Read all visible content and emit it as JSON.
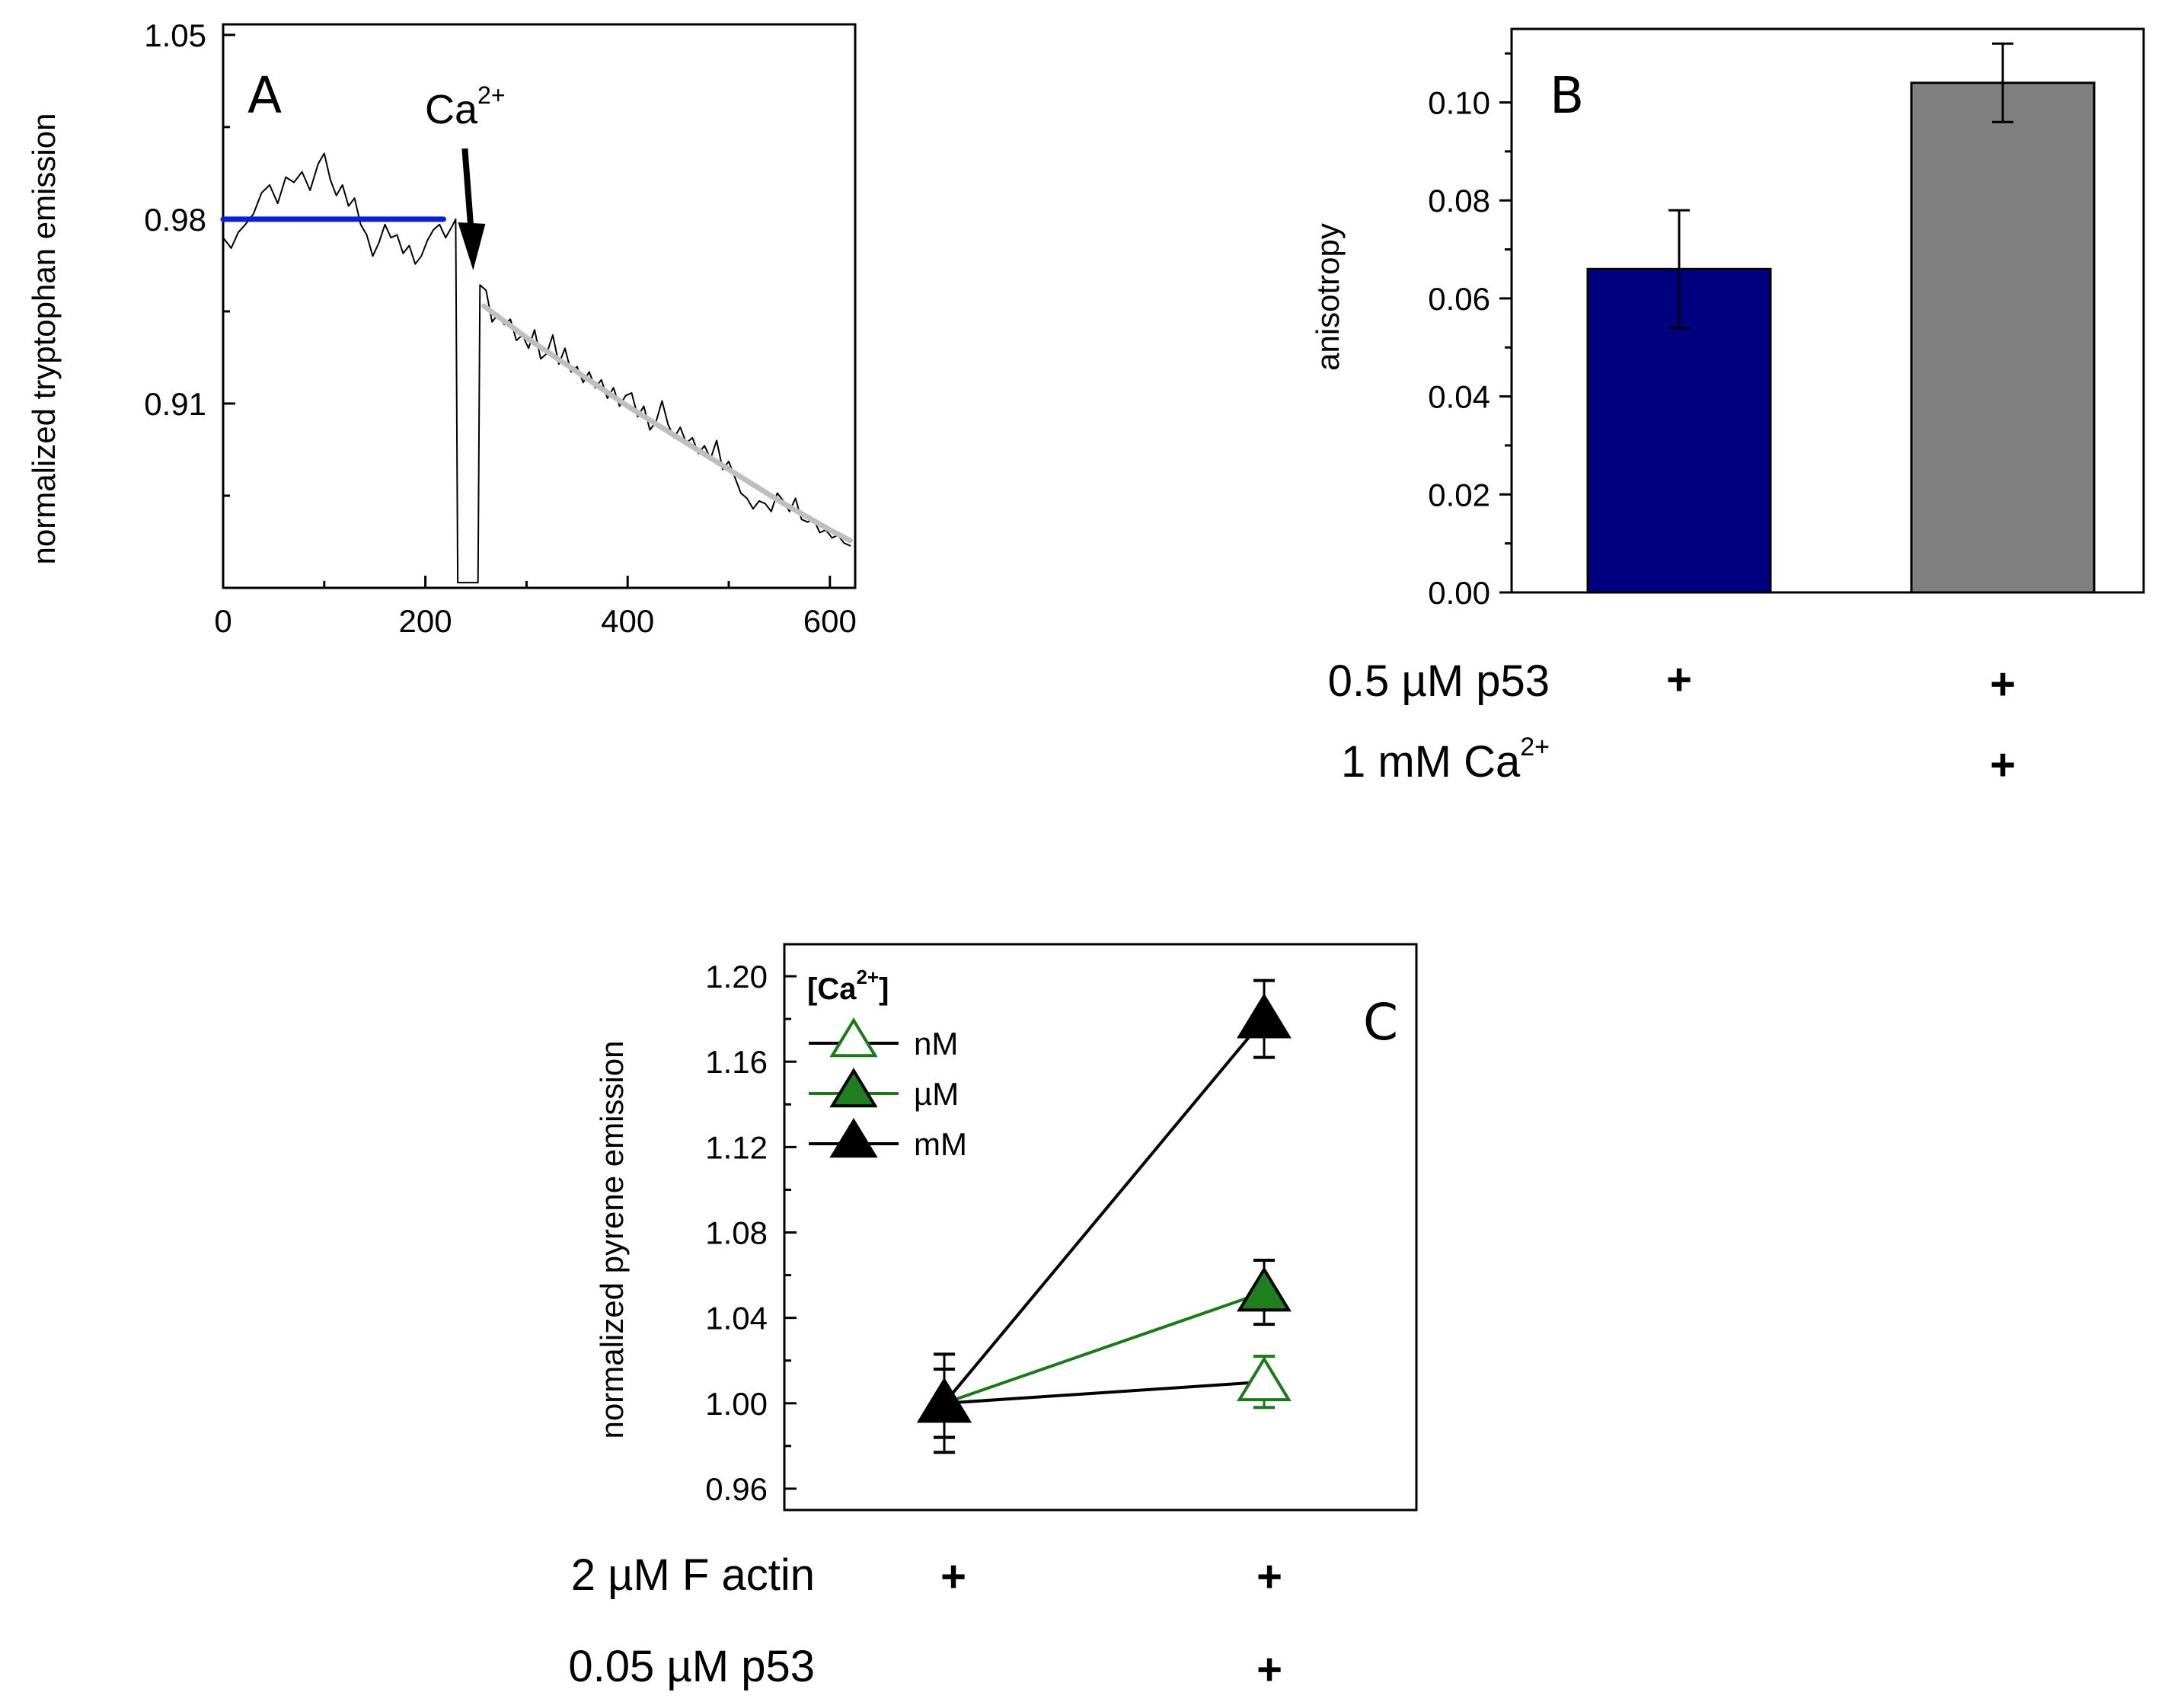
{
  "chart_data": [
    {
      "panel": "A",
      "type": "line",
      "ylabel": "normalized tryptophan emission",
      "xlabel": "",
      "xlim": [
        0,
        625
      ],
      "ylim": [
        0.84,
        1.054
      ],
      "x_ticks": [
        0,
        200,
        400,
        600
      ],
      "y_ticks": [
        0.91,
        0.98,
        1.05
      ],
      "x_tick_labels": [
        "0",
        "200",
        "400",
        "600"
      ],
      "y_tick_labels": [
        "0.91",
        "0.98",
        "1.05"
      ],
      "annotation": {
        "text": "Ca",
        "superscript": "2+",
        "arrow_x": 245
      },
      "series": [
        {
          "role": "raw-trace",
          "color": "#000000",
          "points": [
            [
              0,
              0.973
            ],
            [
              8,
              0.969
            ],
            [
              15,
              0.975
            ],
            [
              22,
              0.978
            ],
            [
              30,
              0.982
            ],
            [
              38,
              0.99
            ],
            [
              46,
              0.993
            ],
            [
              54,
              0.986
            ],
            [
              62,
              0.996
            ],
            [
              70,
              0.994
            ],
            [
              78,
              0.998
            ],
            [
              86,
              0.991
            ],
            [
              94,
              1.001
            ],
            [
              100,
              1.005
            ],
            [
              106,
              0.995
            ],
            [
              112,
              0.989
            ],
            [
              118,
              0.993
            ],
            [
              124,
              0.985
            ],
            [
              130,
              0.988
            ],
            [
              136,
              0.978
            ],
            [
              142,
              0.974
            ],
            [
              148,
              0.966
            ],
            [
              154,
              0.971
            ],
            [
              160,
              0.978
            ],
            [
              166,
              0.973
            ],
            [
              172,
              0.974
            ],
            [
              178,
              0.967
            ],
            [
              184,
              0.97
            ],
            [
              190,
              0.963
            ],
            [
              196,
              0.966
            ],
            [
              202,
              0.972
            ],
            [
              208,
              0.976
            ],
            [
              214,
              0.978
            ],
            [
              220,
              0.973
            ],
            [
              226,
              0.977
            ],
            [
              230,
              0.98
            ],
            [
              232,
              0.842
            ],
            [
              252,
              0.842
            ],
            [
              254,
              0.955
            ],
            [
              260,
              0.953
            ],
            [
              266,
              0.941
            ],
            [
              272,
              0.944
            ],
            [
              278,
              0.94
            ],
            [
              284,
              0.942
            ],
            [
              290,
              0.934
            ],
            [
              296,
              0.936
            ],
            [
              302,
              0.931
            ],
            [
              308,
              0.938
            ],
            [
              314,
              0.927
            ],
            [
              320,
              0.929
            ],
            [
              326,
              0.936
            ],
            [
              332,
              0.925
            ],
            [
              338,
              0.931
            ],
            [
              344,
              0.922
            ],
            [
              350,
              0.924
            ],
            [
              356,
              0.918
            ],
            [
              362,
              0.922
            ],
            [
              368,
              0.916
            ],
            [
              374,
              0.919
            ],
            [
              380,
              0.912
            ],
            [
              386,
              0.916
            ],
            [
              392,
              0.909
            ],
            [
              398,
              0.913
            ],
            [
              404,
              0.914
            ],
            [
              410,
              0.905
            ],
            [
              416,
              0.909
            ],
            [
              422,
              0.9
            ],
            [
              428,
              0.903
            ],
            [
              434,
              0.911
            ],
            [
              440,
              0.902
            ],
            [
              446,
              0.897
            ],
            [
              452,
              0.901
            ],
            [
              458,
              0.895
            ],
            [
              464,
              0.897
            ],
            [
              470,
              0.891
            ],
            [
              476,
              0.894
            ],
            [
              482,
              0.889
            ],
            [
              488,
              0.896
            ],
            [
              494,
              0.885
            ],
            [
              500,
              0.888
            ],
            [
              506,
              0.882
            ],
            [
              512,
              0.876
            ],
            [
              518,
              0.874
            ],
            [
              524,
              0.87
            ],
            [
              530,
              0.873
            ],
            [
              536,
              0.872
            ],
            [
              542,
              0.869
            ],
            [
              548,
              0.876
            ],
            [
              554,
              0.873
            ],
            [
              560,
              0.869
            ],
            [
              566,
              0.874
            ],
            [
              572,
              0.866
            ],
            [
              578,
              0.865
            ],
            [
              584,
              0.866
            ],
            [
              590,
              0.861
            ],
            [
              596,
              0.862
            ],
            [
              602,
              0.859
            ],
            [
              608,
              0.86
            ],
            [
              614,
              0.857
            ],
            [
              620,
              0.856
            ]
          ]
        },
        {
          "role": "pre-calcium-level",
          "color": "#0b1fd6",
          "points": [
            [
              0,
              0.98
            ],
            [
              218,
              0.98
            ]
          ]
        },
        {
          "role": "decay-fit",
          "color": "#bfbfbf",
          "points": [
            [
              258,
              0.947
            ],
            [
              300,
              0.935
            ],
            [
              350,
              0.922
            ],
            [
              400,
              0.909
            ],
            [
              450,
              0.897
            ],
            [
              500,
              0.885
            ],
            [
              550,
              0.873
            ],
            [
              600,
              0.862
            ],
            [
              620,
              0.858
            ]
          ]
        }
      ]
    },
    {
      "panel": "B",
      "type": "bar",
      "ylabel": "anisotropy",
      "ylim": [
        0.0,
        0.115
      ],
      "y_ticks": [
        0.0,
        0.02,
        0.04,
        0.06,
        0.08,
        0.1
      ],
      "y_tick_labels": [
        "0.00",
        "0.02",
        "0.04",
        "0.06",
        "0.08",
        "0.10"
      ],
      "bars": [
        {
          "value": 0.066,
          "error": 0.012,
          "color": "#000080"
        },
        {
          "value": 0.104,
          "error": 0.008,
          "color": "#808080"
        }
      ],
      "conditions": [
        {
          "label": "0.5 µM p53",
          "marks": [
            "+",
            "+"
          ]
        },
        {
          "label": "1 mM Ca",
          "superscript": "2+",
          "marks": [
            "",
            "+"
          ]
        }
      ]
    },
    {
      "panel": "C",
      "type": "line",
      "ylabel": "normalized pyrene emission",
      "ylim": [
        0.95,
        1.215
      ],
      "y_ticks": [
        0.96,
        1.0,
        1.04,
        1.08,
        1.12,
        1.16,
        1.2
      ],
      "y_tick_labels": [
        "0.96",
        "1.00",
        "1.04",
        "1.08",
        "1.12",
        "1.16",
        "1.20"
      ],
      "legend_title": "[Ca",
      "legend_title_sup": "2+",
      "legend_title_end": "]",
      "legend_position": "top-left",
      "series": [
        {
          "name": "nM",
          "marker": "triangle-open",
          "line_color": "#000000",
          "marker_color": "#1a7a1a",
          "values": [
            1.0,
            1.01
          ],
          "errors": [
            0.016,
            0.012
          ]
        },
        {
          "name": "µM",
          "marker": "triangle-filled",
          "line_color": "#1a7a1a",
          "marker_color": "#1f7f1f",
          "values": [
            1.0,
            1.052
          ],
          "errors": [
            0.016,
            0.015
          ]
        },
        {
          "name": "mM",
          "marker": "triangle-filled",
          "line_color": "#000000",
          "marker_color": "#000000",
          "values": [
            1.0,
            1.18
          ],
          "errors": [
            0.023,
            0.018
          ]
        }
      ],
      "conditions": [
        {
          "label": "2 µM F actin",
          "marks": [
            "+",
            "+"
          ]
        },
        {
          "label": "0.05 µM p53",
          "marks": [
            "",
            "+"
          ]
        }
      ]
    }
  ]
}
